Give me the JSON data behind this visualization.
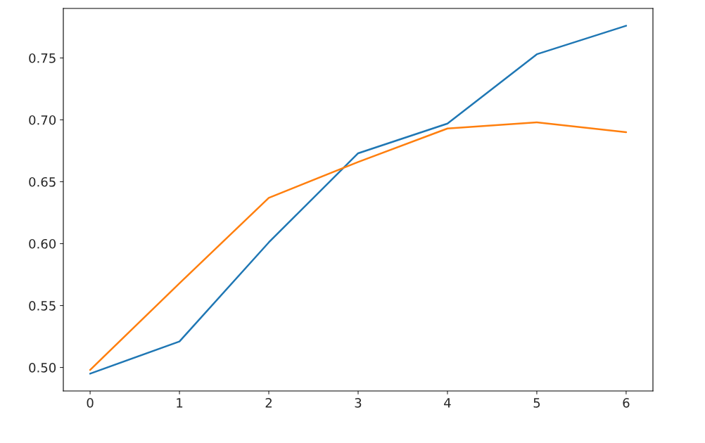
{
  "chart_data": {
    "type": "line",
    "x": [
      0,
      1,
      2,
      3,
      4,
      5,
      6
    ],
    "series": [
      {
        "color": "#1f77b4",
        "values": [
          0.495,
          0.521,
          0.601,
          0.673,
          0.697,
          0.753,
          0.776
        ]
      },
      {
        "color": "#ff7f0e",
        "values": [
          0.498,
          0.568,
          0.637,
          0.666,
          0.693,
          0.698,
          0.69
        ]
      }
    ],
    "xlim": [
      -0.3,
      6.3
    ],
    "xticks": [
      0,
      1,
      2,
      3,
      4,
      5,
      6
    ],
    "ylim": [
      0.481,
      0.79
    ],
    "yticks": [
      {
        "value": 0.5,
        "label": "0.50"
      },
      {
        "value": 0.55,
        "label": "0.55"
      },
      {
        "value": 0.6,
        "label": "0.60"
      },
      {
        "value": 0.65,
        "label": "0.65"
      },
      {
        "value": 0.7,
        "label": "0.70"
      },
      {
        "value": 0.75,
        "label": "0.75"
      }
    ],
    "grid": false,
    "marker": "none",
    "line_style": "solid"
  }
}
